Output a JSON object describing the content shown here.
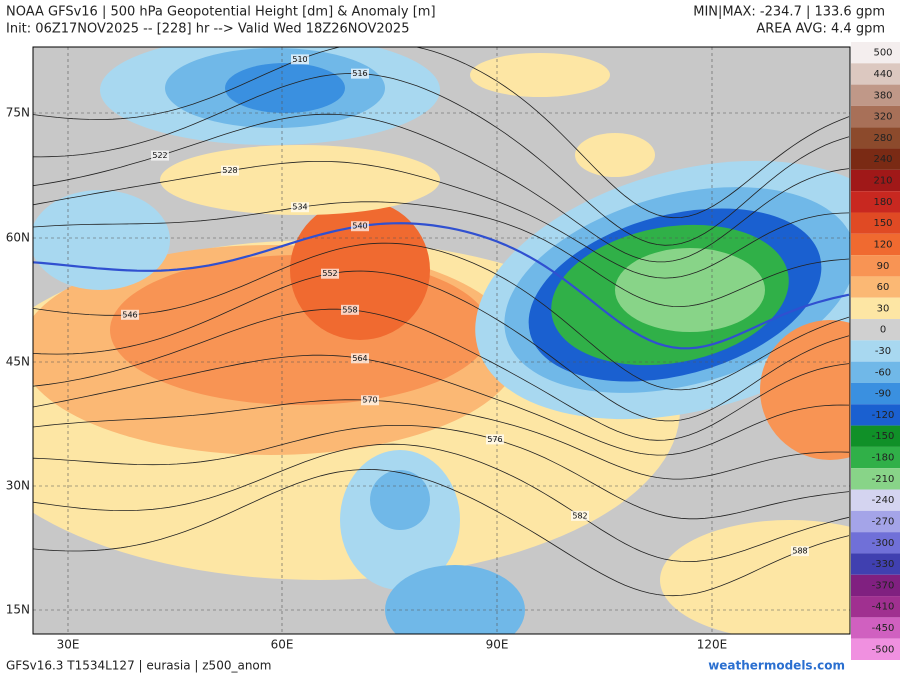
{
  "header": {
    "title": "NOAA GFSv16 | 500 hPa Geopotential Height [dm] & Anomaly [m]",
    "init": "Init: 06Z17NOV2025 -- [228] hr --> Valid Wed 18Z26NOV2025",
    "minmax": "MIN|MAX: -234.7 | 133.6 gpm",
    "area_avg": "AREA AVG: 4.4 gpm"
  },
  "map": {
    "lat_labels": [
      "75N",
      "60N",
      "45N",
      "30N",
      "15N"
    ],
    "lon_labels": [
      "30E",
      "60E",
      "90E",
      "120E"
    ],
    "contour_labels": [
      "510",
      "516",
      "522",
      "528",
      "534",
      "540",
      "546",
      "552",
      "558",
      "564",
      "570",
      "576",
      "582",
      "588"
    ]
  },
  "colorbar": {
    "bins": [
      {
        "label": "500",
        "color": "#f4eeee"
      },
      {
        "label": "440",
        "color": "#dcc8c0"
      },
      {
        "label": "380",
        "color": "#c09888"
      },
      {
        "label": "320",
        "color": "#a87058"
      },
      {
        "label": "280",
        "color": "#8c4a2c"
      },
      {
        "label": "240",
        "color": "#7a2a14"
      },
      {
        "label": "210",
        "color": "#a01818"
      },
      {
        "label": "180",
        "color": "#c82820"
      },
      {
        "label": "150",
        "color": "#e04a24"
      },
      {
        "label": "120",
        "color": "#f06a30"
      },
      {
        "label": "90",
        "color": "#f89454"
      },
      {
        "label": "60",
        "color": "#fbb874"
      },
      {
        "label": "30",
        "color": "#fde6a4"
      },
      {
        "label": "0",
        "color": "#d0d0d0"
      },
      {
        "label": "-30",
        "color": "#a8d8f0"
      },
      {
        "label": "-60",
        "color": "#70b8e8"
      },
      {
        "label": "-90",
        "color": "#3a90e0"
      },
      {
        "label": "-120",
        "color": "#1a60d0"
      },
      {
        "label": "-150",
        "color": "#109028"
      },
      {
        "label": "-180",
        "color": "#30b048"
      },
      {
        "label": "-210",
        "color": "#88d488"
      },
      {
        "label": "-240",
        "color": "#d4d4f0"
      },
      {
        "label": "-270",
        "color": "#a4a4e8"
      },
      {
        "label": "-300",
        "color": "#7070d8"
      },
      {
        "label": "-330",
        "color": "#4040b0"
      },
      {
        "label": "-370",
        "color": "#802080"
      },
      {
        "label": "-410",
        "color": "#a03090"
      },
      {
        "label": "-450",
        "color": "#d060c0"
      },
      {
        "label": "-500",
        "color": "#f090e0"
      }
    ]
  },
  "footer": {
    "model": "GFSv16.3 T1534L127 | eurasia | z500_anom",
    "site": "weathermodels.com"
  }
}
